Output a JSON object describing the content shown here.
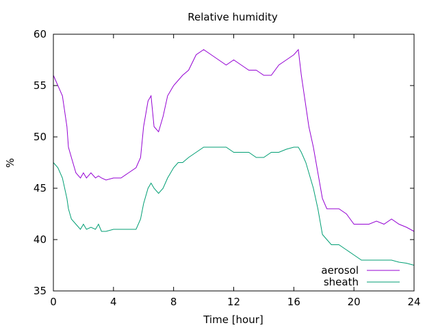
{
  "chart_data": {
    "type": "line",
    "title": "Relative humidity",
    "xlabel": "Time [hour]",
    "ylabel": "%",
    "xlim": [
      0,
      24
    ],
    "ylim": [
      35,
      60
    ],
    "xticks": [
      0,
      4,
      8,
      12,
      16,
      20,
      24
    ],
    "yticks": [
      35,
      40,
      45,
      50,
      55,
      60
    ],
    "grid": false,
    "legend_position": "bottom-right",
    "series": [
      {
        "name": "aerosol",
        "color": "#9400d3",
        "x": [
          0,
          0.3,
          0.6,
          0.9,
          1.0,
          1.2,
          1.5,
          1.8,
          2.0,
          2.2,
          2.5,
          2.8,
          3.0,
          3.2,
          3.5,
          4.0,
          4.5,
          5.0,
          5.5,
          5.8,
          6.0,
          6.3,
          6.5,
          6.7,
          7.0,
          7.3,
          7.6,
          7.8,
          8.0,
          8.3,
          8.6,
          9.0,
          9.5,
          10.0,
          10.5,
          11.0,
          11.5,
          12.0,
          12.5,
          13.0,
          13.5,
          14.0,
          14.5,
          15.0,
          15.5,
          16.0,
          16.3,
          16.5,
          16.8,
          17.0,
          17.3,
          17.6,
          17.9,
          18.2,
          18.5,
          19.0,
          19.5,
          20.0,
          20.5,
          21.0,
          21.5,
          22.0,
          22.5,
          23.0,
          23.5,
          24.0
        ],
        "y": [
          56,
          55,
          54,
          51,
          49,
          48,
          46.5,
          46,
          46.5,
          46,
          46.5,
          46,
          46.2,
          46,
          45.8,
          46,
          46,
          46.5,
          47,
          48,
          51,
          53.5,
          54,
          51,
          50.5,
          52,
          54,
          54.5,
          55,
          55.5,
          56,
          56.5,
          58,
          58.5,
          58,
          57.5,
          57,
          57.5,
          57,
          56.5,
          56.5,
          56,
          56,
          57,
          57.5,
          58,
          58.5,
          56,
          53,
          51,
          49,
          46.5,
          44,
          43,
          43,
          43,
          42.5,
          41.5,
          41.5,
          41.5,
          41.8,
          41.5,
          42,
          41.5,
          41.2,
          40.8
        ]
      },
      {
        "name": "sheath",
        "color": "#009e73",
        "x": [
          0,
          0.3,
          0.6,
          0.9,
          1.0,
          1.2,
          1.5,
          1.8,
          2.0,
          2.2,
          2.5,
          2.8,
          3.0,
          3.2,
          3.5,
          4.0,
          4.5,
          5.0,
          5.5,
          5.8,
          6.0,
          6.3,
          6.5,
          6.7,
          7.0,
          7.3,
          7.6,
          7.8,
          8.0,
          8.3,
          8.6,
          9.0,
          9.5,
          10.0,
          10.5,
          11.0,
          11.5,
          12.0,
          12.5,
          13.0,
          13.5,
          14.0,
          14.5,
          15.0,
          15.5,
          16.0,
          16.3,
          16.5,
          16.8,
          17.0,
          17.3,
          17.6,
          17.9,
          18.2,
          18.5,
          19.0,
          19.5,
          20.0,
          20.5,
          21.0,
          21.5,
          22.0,
          22.5,
          23.0,
          23.5,
          24.0
        ],
        "y": [
          47.5,
          47,
          46,
          44,
          43,
          42,
          41.5,
          41,
          41.5,
          41,
          41.2,
          41,
          41.5,
          40.8,
          40.8,
          41,
          41,
          41,
          41,
          42,
          43.5,
          45,
          45.5,
          45,
          44.5,
          45,
          46,
          46.5,
          47,
          47.5,
          47.5,
          48,
          48.5,
          49,
          49,
          49,
          49,
          48.5,
          48.5,
          48.5,
          48,
          48,
          48.5,
          48.5,
          48.8,
          49,
          49,
          48.5,
          47.5,
          46.5,
          45,
          43,
          40.5,
          40,
          39.5,
          39.5,
          39,
          38.5,
          38,
          38,
          38,
          38,
          38,
          37.8,
          37.7,
          37.5
        ]
      }
    ]
  }
}
